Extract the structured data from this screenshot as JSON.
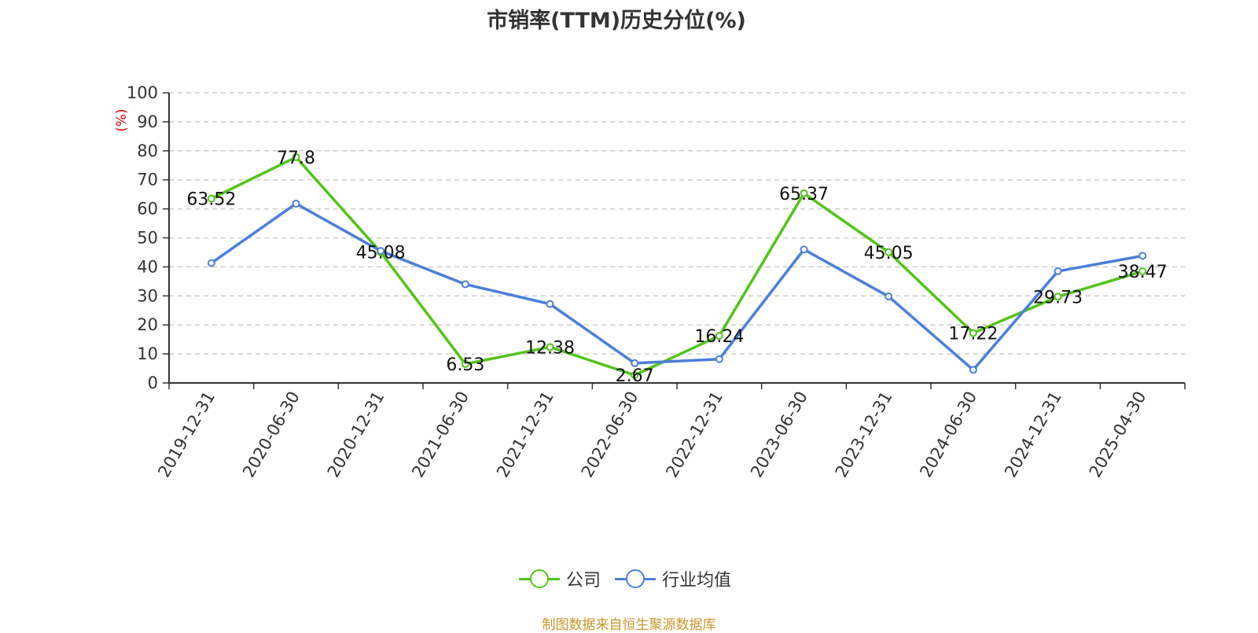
{
  "chart_data": {
    "type": "line",
    "title": "市销率(TTM)历史分位(%)",
    "ylabel": "(%)",
    "ylim": [
      0,
      100
    ],
    "yticks": [
      0,
      10,
      20,
      30,
      40,
      50,
      60,
      70,
      80,
      90,
      100
    ],
    "grid": true,
    "legend_position": "bottom",
    "categories": [
      "2019-12-31",
      "2020-06-30",
      "2020-12-31",
      "2021-06-30",
      "2021-12-31",
      "2022-06-30",
      "2022-12-31",
      "2023-06-30",
      "2023-12-31",
      "2024-06-30",
      "2024-12-31",
      "2025-04-30"
    ],
    "series": [
      {
        "name": "公司",
        "color": "#52c41a",
        "labeled": true,
        "values": [
          63.52,
          77.8,
          45.08,
          6.53,
          12.38,
          2.67,
          16.24,
          65.37,
          45.05,
          17.22,
          29.73,
          38.47
        ]
      },
      {
        "name": "行业均值",
        "color": "#4a7fdb",
        "labeled": false,
        "values": [
          41.3,
          61.8,
          45.5,
          34.0,
          27.2,
          6.8,
          8.2,
          46.0,
          29.8,
          4.5,
          38.5,
          43.8
        ]
      }
    ]
  },
  "footer": {
    "source": "制图数据来自恒生聚源数据库"
  }
}
